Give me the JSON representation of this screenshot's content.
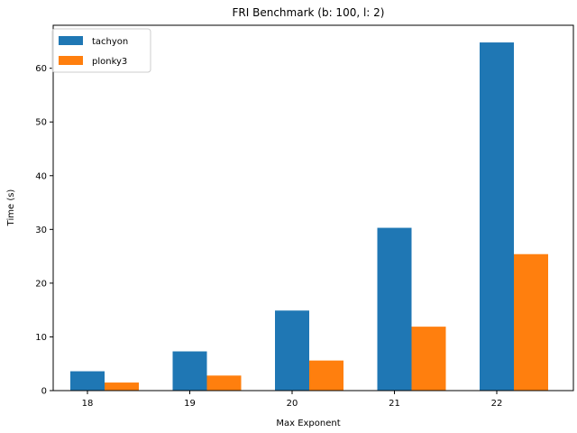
{
  "chart_data": {
    "type": "bar",
    "title": "FRI Benchmark (b: 100, l: 2)",
    "xlabel": "Max Exponent",
    "ylabel": "Time (s)",
    "categories": [
      "18",
      "19",
      "20",
      "21",
      "22"
    ],
    "series": [
      {
        "name": "tachyon",
        "color": "#1f77b4",
        "values": [
          3.6,
          7.3,
          14.9,
          30.3,
          64.8
        ]
      },
      {
        "name": "plonky3",
        "color": "#ff7f0e",
        "values": [
          1.5,
          2.8,
          5.6,
          11.9,
          25.4
        ]
      }
    ],
    "yticks": [
      0,
      10,
      20,
      30,
      40,
      50,
      60
    ],
    "ylim": [
      0,
      68.0
    ],
    "grid": false,
    "legend_position": "top-left"
  }
}
